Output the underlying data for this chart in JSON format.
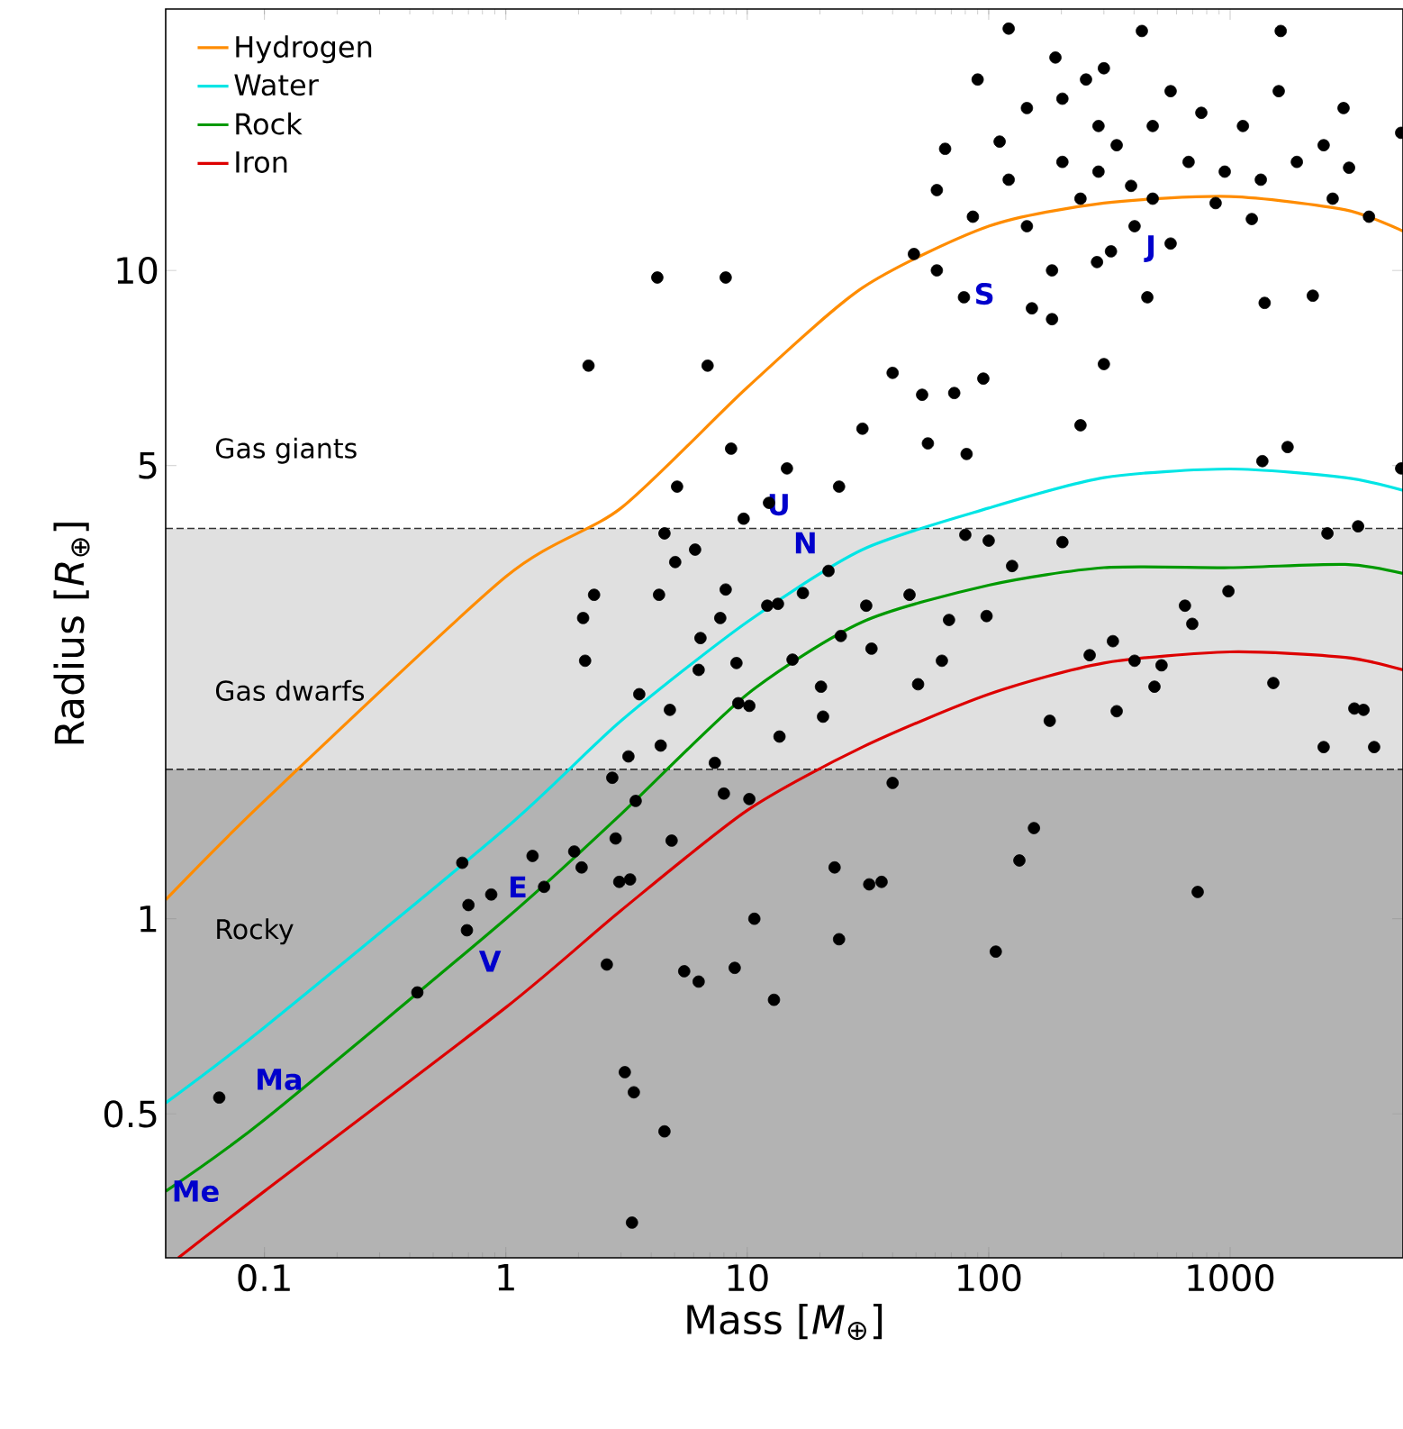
{
  "chart_data": {
    "type": "scatter",
    "xlabel": "Mass [*M*$_{⊕}$]",
    "ylabel": "Radius [*R*$_{⊕}$]",
    "log": "xy",
    "legend": "top left",
    "xlim": [
      0.039,
      5200
    ],
    "ylim": [
      0.3,
      25.3
    ],
    "xticks": [
      0.1,
      1,
      10,
      100,
      1000
    ],
    "yticks": [
      0.5,
      1,
      5,
      10
    ],
    "bands": [
      {
        "axis": "y",
        "from": 1.7,
        "to": 4,
        "label": "Gas dwarfs",
        "color": "#e0e0e0"
      },
      {
        "axis": "y",
        "from": 0.3,
        "to": 1.7,
        "label": "Rocky",
        "color": "#b3b3b3"
      }
    ],
    "ref_lines": [
      {
        "axis": "y",
        "value": 4,
        "color": "#333333",
        "line_style": "dashed"
      },
      {
        "axis": "y",
        "value": 1.7,
        "color": "#333333",
        "line_style": "dashed"
      }
    ],
    "annotations": [
      "Gas giants",
      "Me",
      "Ma",
      "V",
      "E",
      "U",
      "N",
      "S",
      "J"
    ],
    "series": [
      {
        "name": "Hydrogen",
        "type": "line",
        "color": "#ff8c00",
        "marker": "none",
        "x": [
          0.039,
          0.1,
          1,
          3,
          10,
          30,
          100,
          300,
          1000,
          3000,
          5200
        ],
        "values": [
          1.07,
          1.52,
          3.37,
          4.3,
          6.6,
          9.4,
          11.7,
          12.7,
          13.0,
          12.4,
          11.5
        ]
      },
      {
        "name": "Water",
        "type": "line",
        "color": "#00e5e5",
        "marker": "none",
        "x": [
          0.039,
          0.1,
          1,
          3,
          10,
          30,
          100,
          300,
          1000,
          3000,
          5200
        ],
        "values": [
          0.52,
          0.68,
          1.38,
          2.02,
          2.87,
          3.71,
          4.3,
          4.79,
          4.94,
          4.79,
          4.58
        ]
      },
      {
        "name": "Rock",
        "type": "line",
        "color": "#009900",
        "marker": "none",
        "x": [
          0.039,
          0.1,
          1,
          3,
          10,
          30,
          100,
          300,
          1000,
          3000,
          5200
        ],
        "values": [
          0.38,
          0.49,
          1.0,
          1.45,
          2.22,
          2.87,
          3.27,
          3.48,
          3.48,
          3.52,
          3.41
        ]
      },
      {
        "name": "Iron",
        "type": "line",
        "color": "#dd0000",
        "marker": "none",
        "x": [
          0.044,
          0.1,
          1,
          3,
          10,
          30,
          100,
          300,
          1000,
          3000,
          5200
        ],
        "values": [
          0.3,
          0.38,
          0.73,
          1.03,
          1.47,
          1.84,
          2.22,
          2.48,
          2.58,
          2.53,
          2.42
        ]
      },
      {
        "color": "#000000",
        "marker": "circle",
        "x": [
          0.065,
          0.43,
          0.66,
          0.7,
          0.69,
          0.87,
          1.44,
          2.06,
          2.62,
          3.11,
          3.39,
          4.54,
          3.33,
          2.85,
          3.27,
          4.86,
          5.48,
          6.29,
          8.87,
          12.9,
          24,
          23,
          32,
          36,
          40,
          107,
          134,
          154,
          734,
          2440,
          3570,
          179,
          100,
          125,
          64,
          98,
          262,
          327,
          339,
          402,
          520,
          486,
          650,
          697,
          984,
          1510,
          3270,
          3950,
          2530,
          3390,
          1360,
          1730,
          5110,
          300,
          240,
          202,
          2.2,
          4.24,
          8.14,
          6.85,
          8.57,
          14.6,
          5.12,
          12.3,
          24,
          30,
          40,
          53,
          56,
          72,
          81,
          95,
          80,
          17,
          8.14,
          6.29,
          9.66,
          12.1,
          6.08,
          2.09,
          2.13,
          4.31,
          6.4,
          9.02,
          15.4,
          24.4,
          20.2,
          32.7,
          21.7,
          31.1,
          47,
          51,
          68.5,
          3.22,
          4.38,
          7.34,
          10.2,
          4.78,
          3.57,
          13.6,
          20.6,
          2.32,
          5.03,
          7.73,
          9.18,
          13.4,
          4.54,
          3.45,
          2.76,
          8.0,
          10.2,
          1.92,
          1.29,
          2.95,
          10.7,
          121,
          431,
          1620,
          189,
          300,
          111,
          66,
          49,
          79,
          151,
          183,
          454,
          1390,
          2200,
          5110,
          3110,
          2950,
          3760,
          1230,
          871,
          389,
          253,
          90,
          202,
          339,
          121,
          478,
          567,
          673,
          240,
          1130,
          1890,
          1340,
          402,
          144,
          183,
          321,
          567,
          86,
          61,
          281,
          285,
          144,
          760,
          1590,
          2440,
          61,
          2660,
          202,
          478,
          285,
          950
        ],
        "values": [
          0.53,
          0.77,
          1.22,
          1.05,
          0.96,
          1.09,
          1.12,
          1.2,
          0.85,
          0.58,
          0.54,
          0.47,
          0.34,
          1.33,
          1.15,
          1.32,
          0.83,
          0.8,
          0.84,
          0.75,
          0.93,
          1.2,
          1.13,
          1.14,
          1.62,
          0.89,
          1.23,
          1.38,
          1.1,
          1.84,
          2.1,
          2.02,
          3.83,
          3.5,
          2.5,
          2.93,
          2.55,
          2.68,
          2.09,
          2.5,
          2.46,
          2.28,
          3.04,
          2.85,
          3.2,
          2.31,
          2.11,
          1.84,
          3.93,
          4.03,
          5.08,
          5.34,
          4.95,
          7.17,
          5.77,
          3.81,
          7.13,
          9.75,
          9.75,
          7.13,
          5.31,
          4.95,
          4.64,
          4.38,
          4.64,
          5.7,
          6.95,
          6.43,
          5.41,
          6.47,
          5.21,
          6.81,
          3.91,
          3.18,
          3.22,
          2.42,
          4.14,
          3.04,
          3.71,
          2.91,
          2.5,
          3.16,
          2.71,
          2.48,
          2.51,
          2.73,
          2.28,
          2.61,
          3.44,
          3.04,
          3.16,
          2.3,
          2.89,
          1.78,
          1.85,
          1.74,
          2.13,
          2.1,
          2.22,
          1.91,
          2.05,
          3.16,
          3.55,
          2.91,
          2.15,
          3.06,
          3.93,
          1.52,
          1.65,
          1.56,
          1.53,
          1.27,
          1.25,
          1.14,
          1.0,
          23.6,
          23.4,
          23.4,
          21.3,
          20.5,
          15.8,
          15.4,
          10.6,
          9.09,
          8.74,
          8.41,
          9.09,
          8.91,
          9.14,
          16.3,
          14.4,
          17.8,
          12.1,
          12.0,
          12.7,
          13.5,
          19.7,
          19.7,
          14.7,
          15.6,
          13.8,
          16.7,
          18.9,
          14.7,
          12.9,
          16.7,
          14.7,
          13.8,
          11.7,
          11.7,
          10.0,
          10.7,
          11.0,
          12.1,
          10.0,
          10.3,
          16.7,
          17.8,
          17.5,
          18.9,
          15.6,
          13.3,
          12.9,
          18.4,
          12.9,
          14.2,
          14.2
        ]
      }
    ]
  }
}
